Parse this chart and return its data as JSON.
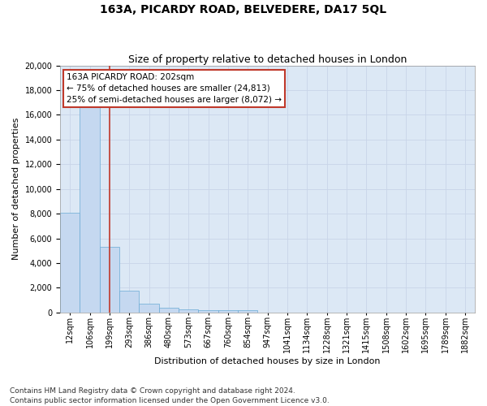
{
  "title": "163A, PICARDY ROAD, BELVEDERE, DA17 5QL",
  "subtitle": "Size of property relative to detached houses in London",
  "xlabel": "Distribution of detached houses by size in London",
  "ylabel": "Number of detached properties",
  "categories": [
    "12sqm",
    "106sqm",
    "199sqm",
    "293sqm",
    "386sqm",
    "480sqm",
    "573sqm",
    "667sqm",
    "760sqm",
    "854sqm",
    "947sqm",
    "1041sqm",
    "1134sqm",
    "1228sqm",
    "1321sqm",
    "1415sqm",
    "1508sqm",
    "1602sqm",
    "1695sqm",
    "1789sqm",
    "1882sqm"
  ],
  "values": [
    8100,
    16700,
    5300,
    1750,
    700,
    380,
    280,
    200,
    150,
    200,
    0,
    0,
    0,
    0,
    0,
    0,
    0,
    0,
    0,
    0,
    0
  ],
  "bar_color": "#c5d8f0",
  "bar_edge_color": "#6aaad4",
  "vline_x": 2,
  "vline_color": "#c0392b",
  "annotation_text": "163A PICARDY ROAD: 202sqm\n← 75% of detached houses are smaller (24,813)\n25% of semi-detached houses are larger (8,072) →",
  "annotation_box_color": "#ffffff",
  "annotation_box_edge": "#c0392b",
  "ylim": [
    0,
    20000
  ],
  "yticks": [
    0,
    2000,
    4000,
    6000,
    8000,
    10000,
    12000,
    14000,
    16000,
    18000,
    20000
  ],
  "grid_color": "#c8d4e8",
  "bg_color": "#dce8f5",
  "footer": "Contains HM Land Registry data © Crown copyright and database right 2024.\nContains public sector information licensed under the Open Government Licence v3.0.",
  "title_fontsize": 10,
  "subtitle_fontsize": 9,
  "axis_label_fontsize": 8,
  "tick_fontsize": 7,
  "footer_fontsize": 6.5,
  "annotation_fontsize": 7.5
}
